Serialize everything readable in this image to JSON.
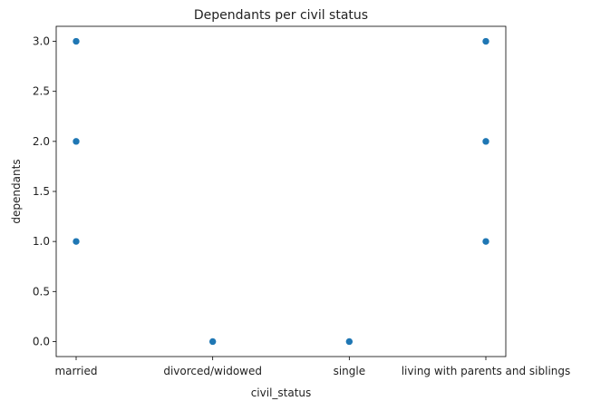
{
  "chart_data": {
    "type": "scatter",
    "title": "Dependants per civil status",
    "xlabel": "civil_status",
    "ylabel": "dependants",
    "categories": [
      "married",
      "divorced/widowed",
      "single",
      "living with parents and siblings"
    ],
    "points": [
      {
        "x": "married",
        "y": 1.0
      },
      {
        "x": "married",
        "y": 2.0
      },
      {
        "x": "married",
        "y": 3.0
      },
      {
        "x": "divorced/widowed",
        "y": 0.0
      },
      {
        "x": "single",
        "y": 0.0
      },
      {
        "x": "living with parents and siblings",
        "y": 1.0
      },
      {
        "x": "living with parents and siblings",
        "y": 2.0
      },
      {
        "x": "living with parents and siblings",
        "y": 3.0
      }
    ],
    "yticks": [
      "0.0",
      "0.5",
      "1.0",
      "1.5",
      "2.0",
      "2.5",
      "3.0"
    ],
    "ylim": [
      -0.15,
      3.15
    ],
    "grid": false,
    "colors": {
      "marker": "#1f77b4",
      "axis": "#000000"
    }
  }
}
